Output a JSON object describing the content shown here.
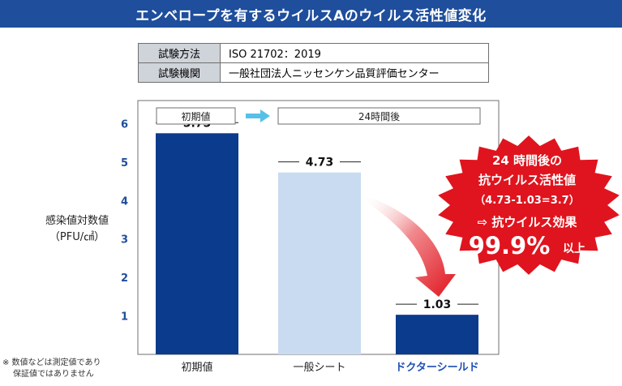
{
  "title": "エンベロープを有するウイルスAのウイルス活性値変化",
  "test_info": [
    {
      "key": "試験方法",
      "value": "ISO 21702：2019"
    },
    {
      "key": "試験機関",
      "value": "一般社団法人ニッセンケン品質評価センター"
    }
  ],
  "legend": {
    "before": "初期値",
    "after": "24時間後"
  },
  "chart_data": {
    "type": "bar",
    "categories": [
      "初期値",
      "一般シート",
      "ドクターシールド"
    ],
    "values": [
      5.75,
      4.73,
      1.03
    ],
    "value_labels": [
      "5.75",
      "4.73",
      "1.03"
    ],
    "ylabel": "感染値対数値",
    "ylabel_unit": "（PFU/㎠）",
    "ylim": [
      0,
      6.6
    ],
    "yticks": [
      1,
      2,
      3,
      4,
      5,
      6
    ],
    "grid": false
  },
  "colors": {
    "title_bg": "#1e4e9c",
    "bar_initial": "#0b3b8c",
    "bar_general": "#c9dbf0",
    "bar_product": "#0b3b8c",
    "product_label": "#1f4fb5",
    "arrow": "#e0141e",
    "badge": "#e0141e",
    "legend_arrow": "#55c1e8"
  },
  "badge": {
    "line1": "24 時間後の",
    "line2": "抗ウイルス活性値",
    "line3": "（4.73-1.03=3.7）",
    "line4": "⇨ 抗ウイルス効果",
    "big_value": "99.9%",
    "suffix": "以上"
  },
  "note": {
    "line1": "※ 数値などは測定値であり",
    "line2": "保証値ではありません"
  }
}
